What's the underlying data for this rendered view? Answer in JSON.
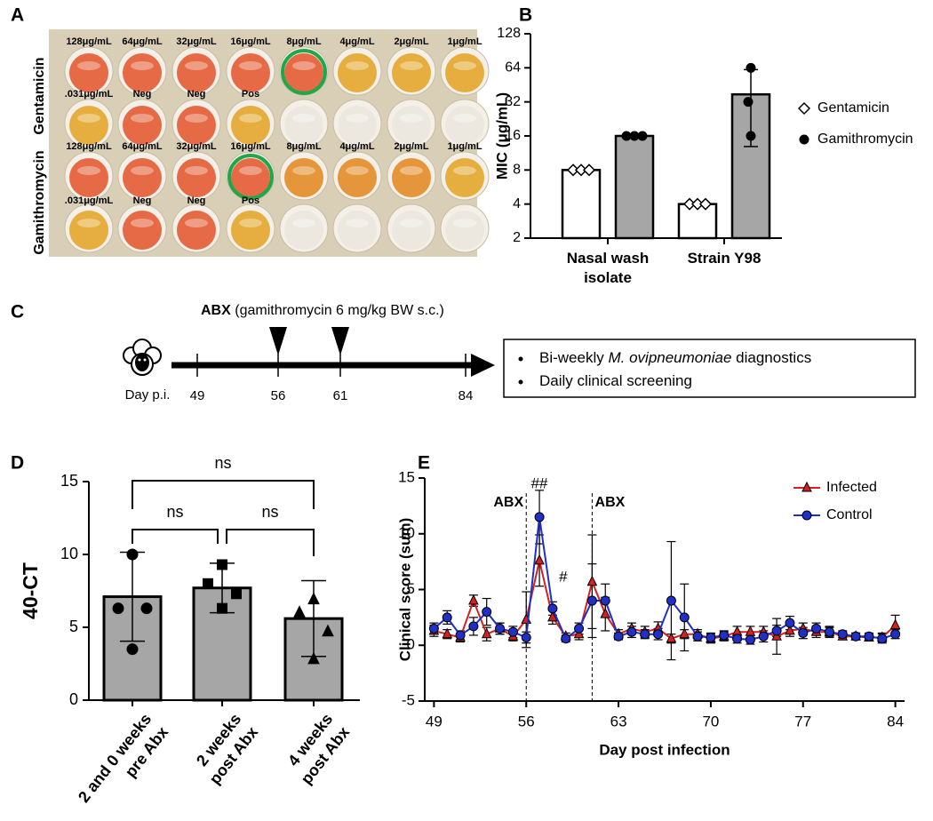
{
  "panel_labels": [
    "A",
    "B",
    "C",
    "D",
    "E"
  ],
  "plate": {
    "row_labels": [
      "Gentamicin",
      "Gamithromycin"
    ],
    "well_labels": [
      [
        "128μg/mL",
        "64μg/mL",
        "32μg/mL",
        "16μg/mL",
        "8μg/mL",
        "4μg/mL",
        "2μg/mL",
        "1μg/mL"
      ],
      [
        ".031μg/mL",
        "Neg",
        "Neg",
        "Pos"
      ],
      [
        "128μg/mL",
        "64μg/mL",
        "32μg/mL",
        "16μg/mL",
        "8μg/mL",
        "4μg/mL",
        "2μg/mL",
        "1μg/mL"
      ],
      [
        ".031μg/mL",
        "Neg",
        "Neg",
        "Pos"
      ]
    ]
  },
  "timeline": {
    "treatment": "ABX",
    "treatment_detail": "(gamithromycin 6 mg/kg BW s.c.)",
    "axis_label": "Day p.i.",
    "ticks": [
      "49",
      "56",
      "61",
      "84"
    ],
    "notes": [
      {
        "prefix": "Bi-weekly",
        "italic": "M. ovipneumoniae",
        "suffix": "diagnostics"
      },
      {
        "prefix": "Daily clinical screening"
      }
    ]
  },
  "chart_data": [
    {
      "type": "bar",
      "ylabel": "MIC (μg/mL)",
      "yscale": "log",
      "categories": [
        "Nasal wash isolate",
        "Strain Y98"
      ],
      "ylim": [
        2,
        128
      ],
      "yticks": [
        2,
        4,
        8,
        16,
        32,
        64,
        128
      ],
      "series": [
        {
          "name": "Gentamicin",
          "color": "#ffffff",
          "marker": "diamond",
          "values": [
            8,
            4
          ],
          "errors": [
            0,
            0
          ],
          "points": [
            [
              8,
              8,
              8
            ],
            [
              4,
              4,
              4
            ]
          ]
        },
        {
          "name": "Gamithromycin",
          "color": "#a6a6a6",
          "marker": "circle",
          "values": [
            16,
            37.3
          ],
          "errors": [
            0,
            24.4
          ],
          "points": [
            [
              16,
              16,
              16
            ],
            [
              64,
              32,
              16
            ]
          ]
        }
      ]
    },
    {
      "type": "bar",
      "ylabel": "40-CT",
      "categories": [
        "2 and 0 weeks pre Abx",
        "2 weeks post Abx",
        "4 weeks post Abx"
      ],
      "ylim": [
        0,
        15
      ],
      "yticks": [
        0,
        5,
        10,
        15
      ],
      "color": "#a6a6a6",
      "markers": [
        "circle",
        "square",
        "triangle"
      ],
      "values": [
        7.1,
        7.7,
        5.6
      ],
      "errors": [
        3.05,
        1.7,
        2.6
      ],
      "points": [
        [
          10.0,
          6.3,
          6.3,
          3.5
        ],
        [
          9.3,
          8.0,
          7.3,
          6.3
        ],
        [
          6.9,
          6.0,
          4.7,
          2.8
        ]
      ],
      "significance": [
        "ns",
        "ns",
        "ns"
      ]
    },
    {
      "type": "line",
      "xlabel": "Day post infection",
      "ylabel": "Clinical score (sum)",
      "xlim": [
        48.3,
        84.7
      ],
      "ylim": [
        -5,
        15
      ],
      "xticks": [
        49,
        56,
        63,
        70,
        77,
        84
      ],
      "yticks": [
        -5,
        0,
        5,
        10,
        15
      ],
      "legend": "top-right",
      "abx_label": "ABX",
      "abx_days": [
        56,
        61
      ],
      "significance": [
        {
          "text": "##",
          "x": 57
        },
        {
          "text": "#",
          "x": 58
        }
      ],
      "x": [
        49,
        50,
        51,
        52,
        53,
        54,
        55,
        56,
        57,
        58,
        59,
        60,
        61,
        62,
        63,
        64,
        65,
        66,
        67,
        68,
        69,
        70,
        71,
        72,
        73,
        74,
        75,
        76,
        77,
        78,
        79,
        80,
        81,
        82,
        83,
        84
      ],
      "series": [
        {
          "name": "Infected",
          "color": "#d42020",
          "marker": "triangle",
          "values": [
            1.3,
            1.0,
            0.7,
            4.0,
            1.0,
            1.5,
            0.8,
            2.3,
            7.6,
            2.5,
            0.8,
            1.0,
            5.7,
            2.8,
            1.0,
            1.5,
            1.2,
            1.5,
            0.6,
            1.0,
            1.0,
            0.6,
            0.8,
            1.2,
            1.2,
            1.2,
            0.8,
            1.3,
            1.5,
            1.2,
            1.2,
            0.8,
            0.8,
            0.7,
            0.7,
            1.8
          ],
          "errors": [
            0.5,
            0.4,
            0.4,
            0.5,
            0.6,
            0.5,
            0.4,
            2.5,
            2.3,
            0.6,
            0.3,
            0.5,
            4.2,
            1.5,
            0.4,
            0.5,
            0.5,
            0.6,
            0.4,
            0.4,
            0.4,
            0.4,
            0.4,
            0.5,
            0.5,
            0.5,
            1.6,
            0.5,
            0.5,
            0.5,
            0.4,
            0.3,
            0.3,
            0.3,
            0.4,
            0.9
          ]
        },
        {
          "name": "Control",
          "color": "#1f2fc8",
          "marker": "circle",
          "values": [
            1.5,
            2.5,
            0.9,
            1.7,
            3.0,
            1.5,
            1.2,
            0.7,
            11.5,
            3.3,
            0.6,
            1.5,
            4.0,
            4.0,
            0.8,
            1.2,
            1.0,
            1.0,
            4.0,
            2.5,
            0.8,
            0.7,
            0.9,
            0.6,
            0.5,
            0.8,
            1.3,
            2.0,
            1.1,
            1.5,
            1.2,
            1.0,
            0.8,
            0.8,
            0.6,
            1.0
          ],
          "errors": [
            0.5,
            0.6,
            0.4,
            0.8,
            1.2,
            0.5,
            0.5,
            0.5,
            2.4,
            0.6,
            0.3,
            0.5,
            3.3,
            1.5,
            0.3,
            0.5,
            0.4,
            0.5,
            5.3,
            3.0,
            0.4,
            0.4,
            0.4,
            0.4,
            0.4,
            0.5,
            0.5,
            0.6,
            0.5,
            0.5,
            0.5,
            0.3,
            0.3,
            0.3,
            0.4,
            0.4
          ]
        }
      ]
    }
  ]
}
